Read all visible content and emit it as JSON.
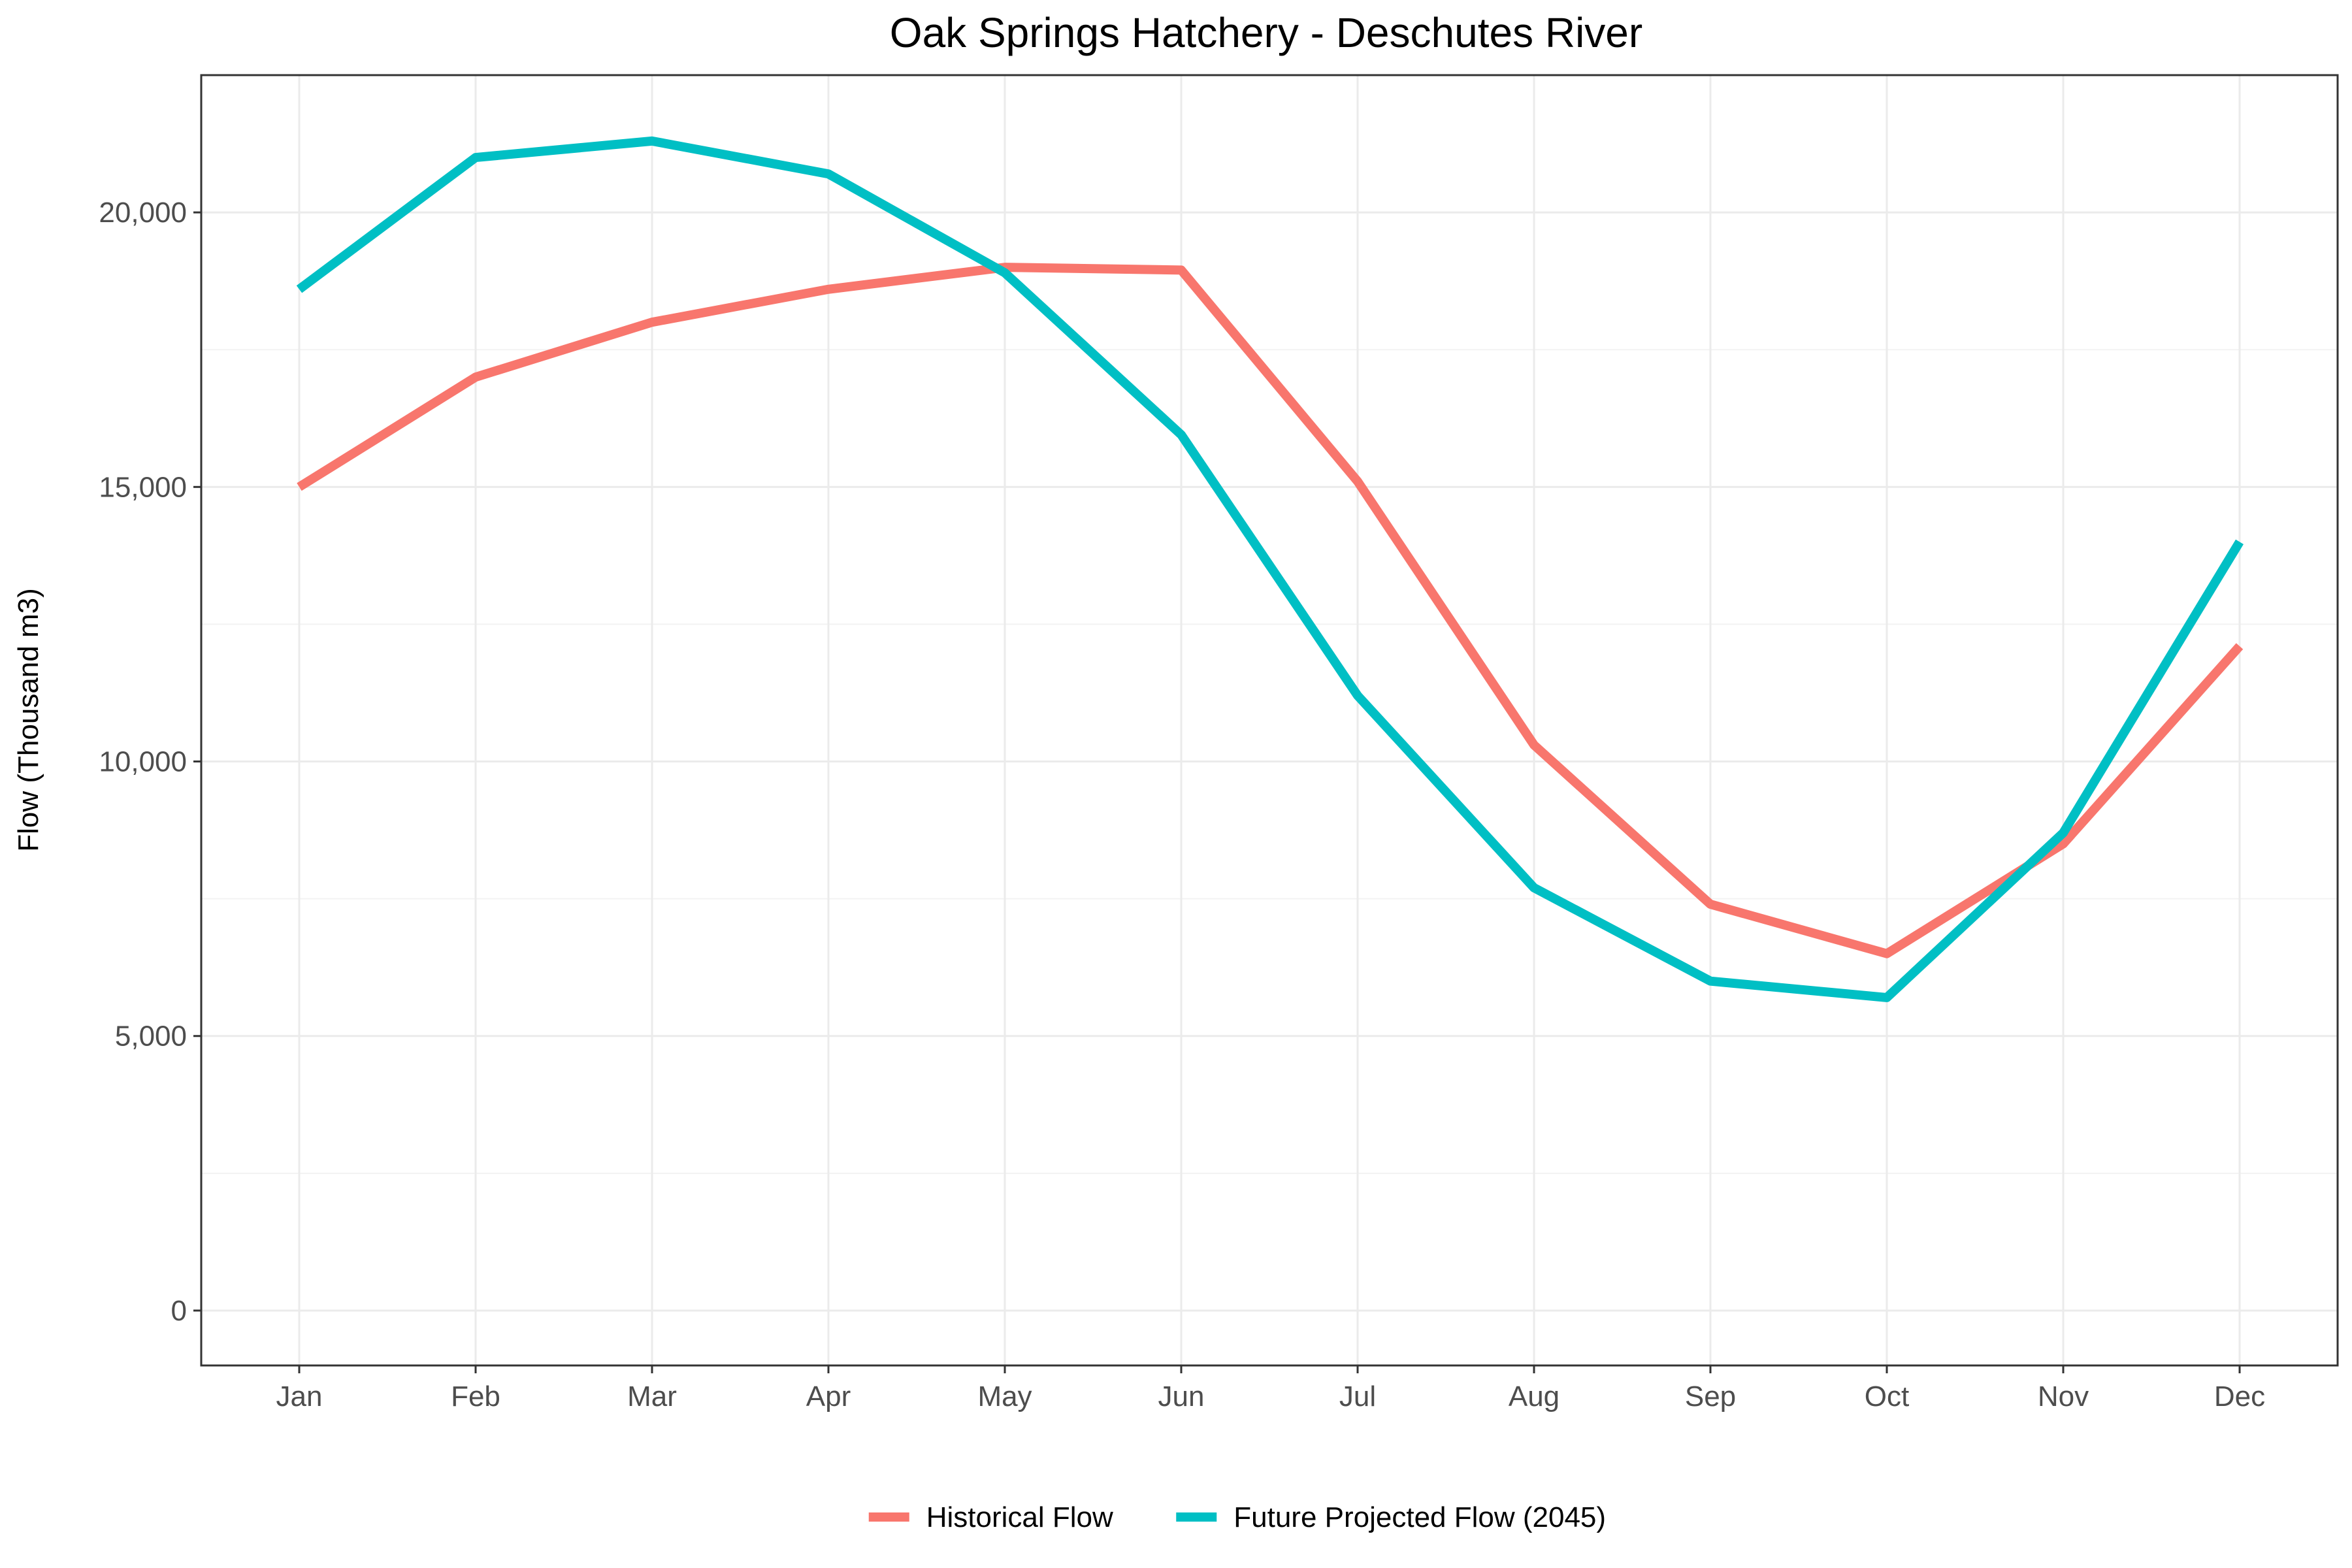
{
  "chart_data": {
    "type": "line",
    "title": "Oak Springs Hatchery - Deschutes River",
    "xlabel": "",
    "ylabel": "Flow (Thousand m3)",
    "categories": [
      "Jan",
      "Feb",
      "Mar",
      "Apr",
      "May",
      "Jun",
      "Jul",
      "Aug",
      "Sep",
      "Oct",
      "Nov",
      "Dec"
    ],
    "ylim": [
      -1000,
      22500
    ],
    "yticks": [
      0,
      5000,
      10000,
      15000,
      20000
    ],
    "ytick_labels": [
      "0",
      "5,000",
      "10,000",
      "15,000",
      "20,000"
    ],
    "grid": true,
    "legend_position": "bottom",
    "series": [
      {
        "name": "Historical Flow",
        "color": "#F8766D",
        "values": [
          15000,
          17000,
          18000,
          18600,
          19000,
          18950,
          15100,
          10300,
          7400,
          6500,
          8500,
          12100
        ]
      },
      {
        "name": "Future Projected Flow (2045)",
        "color": "#00BFC4",
        "values": [
          18600,
          21000,
          21300,
          20700,
          18900,
          15950,
          11200,
          7700,
          6000,
          5700,
          8700,
          14000
        ]
      }
    ]
  }
}
